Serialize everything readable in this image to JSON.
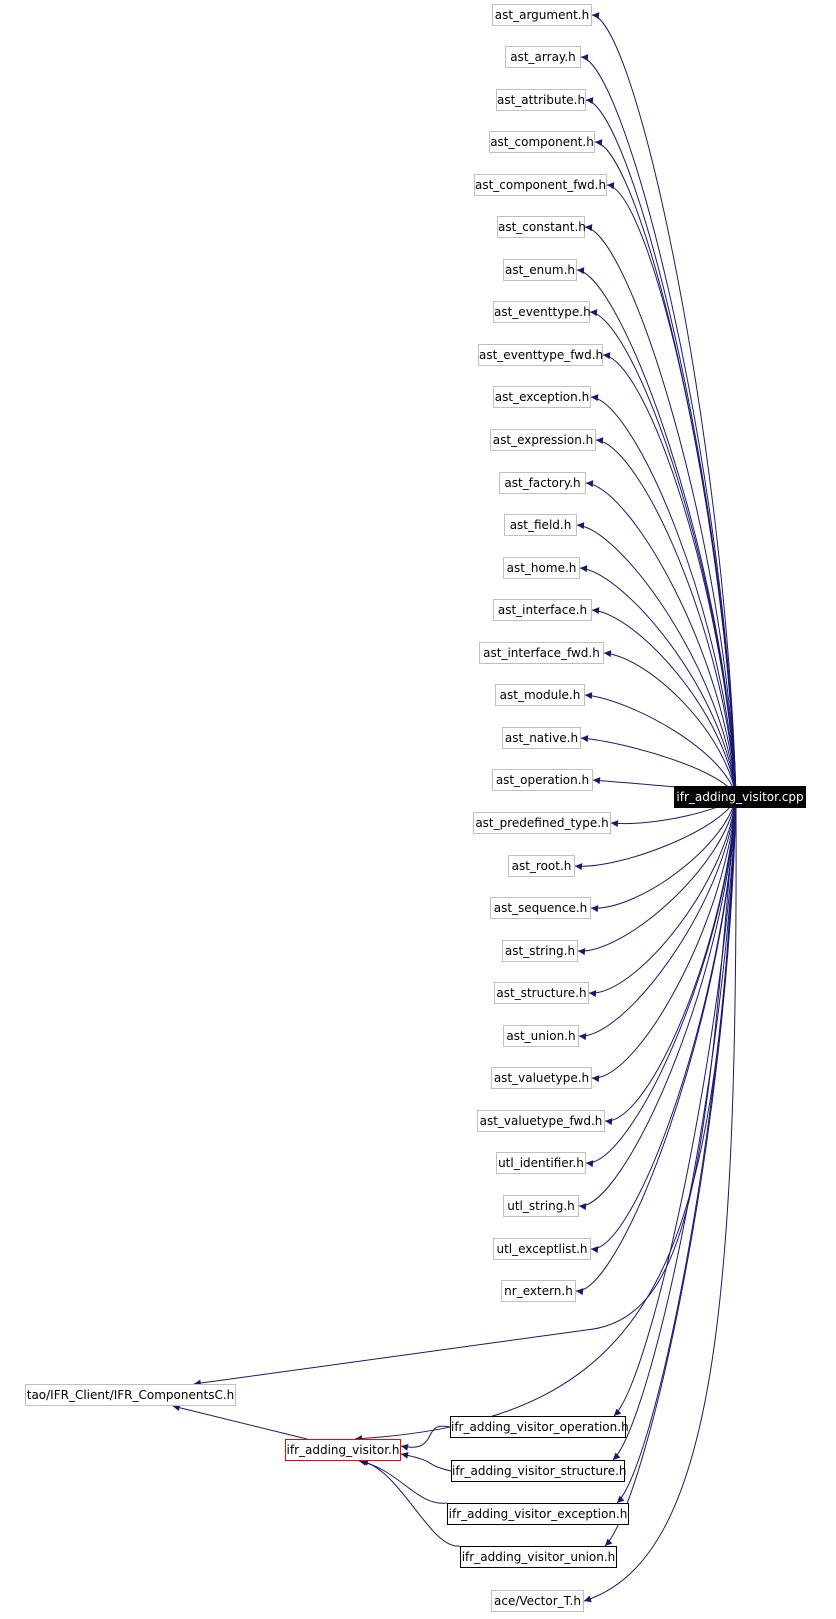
{
  "root": {
    "label": "ifr_adding_visitor.cpp"
  },
  "includes": [
    {
      "label": "ast_argument.h"
    },
    {
      "label": "ast_array.h"
    },
    {
      "label": "ast_attribute.h"
    },
    {
      "label": "ast_component.h"
    },
    {
      "label": "ast_component_fwd.h"
    },
    {
      "label": "ast_constant.h"
    },
    {
      "label": "ast_enum.h"
    },
    {
      "label": "ast_eventtype.h"
    },
    {
      "label": "ast_eventtype_fwd.h"
    },
    {
      "label": "ast_exception.h"
    },
    {
      "label": "ast_expression.h"
    },
    {
      "label": "ast_factory.h"
    },
    {
      "label": "ast_field.h"
    },
    {
      "label": "ast_home.h"
    },
    {
      "label": "ast_interface.h"
    },
    {
      "label": "ast_interface_fwd.h"
    },
    {
      "label": "ast_module.h"
    },
    {
      "label": "ast_native.h"
    },
    {
      "label": "ast_operation.h"
    },
    {
      "label": "ast_predefined_type.h"
    },
    {
      "label": "ast_root.h"
    },
    {
      "label": "ast_sequence.h"
    },
    {
      "label": "ast_string.h"
    },
    {
      "label": "ast_structure.h"
    },
    {
      "label": "ast_union.h"
    },
    {
      "label": "ast_valuetype.h"
    },
    {
      "label": "ast_valuetype_fwd.h"
    },
    {
      "label": "utl_identifier.h"
    },
    {
      "label": "utl_string.h"
    },
    {
      "label": "utl_exceptlist.h"
    },
    {
      "label": "nr_extern.h"
    }
  ],
  "components": {
    "label": "tao/IFR_Client/IFR_ComponentsC.h"
  },
  "visitor": {
    "label": "ifr_adding_visitor.h"
  },
  "subvisitors": [
    {
      "label": "ifr_adding_visitor_operation.h"
    },
    {
      "label": "ifr_adding_visitor_structure.h"
    },
    {
      "label": "ifr_adding_visitor_exception.h"
    },
    {
      "label": "ifr_adding_visitor_union.h"
    }
  ],
  "vector": {
    "label": "ace/Vector_T.h"
  },
  "colors": {
    "edge": "#191970",
    "grey_border": "#bfbfbf",
    "highlight_border": "#ff0000",
    "root_fill": "#000000"
  }
}
